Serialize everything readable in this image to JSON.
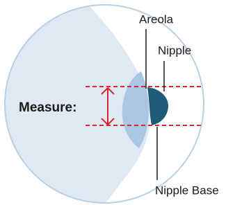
{
  "labels": {
    "areola": "Areola",
    "nipple": "Nipple",
    "nipple_base": "Nipple Base",
    "measure": "Measure:"
  }
}
